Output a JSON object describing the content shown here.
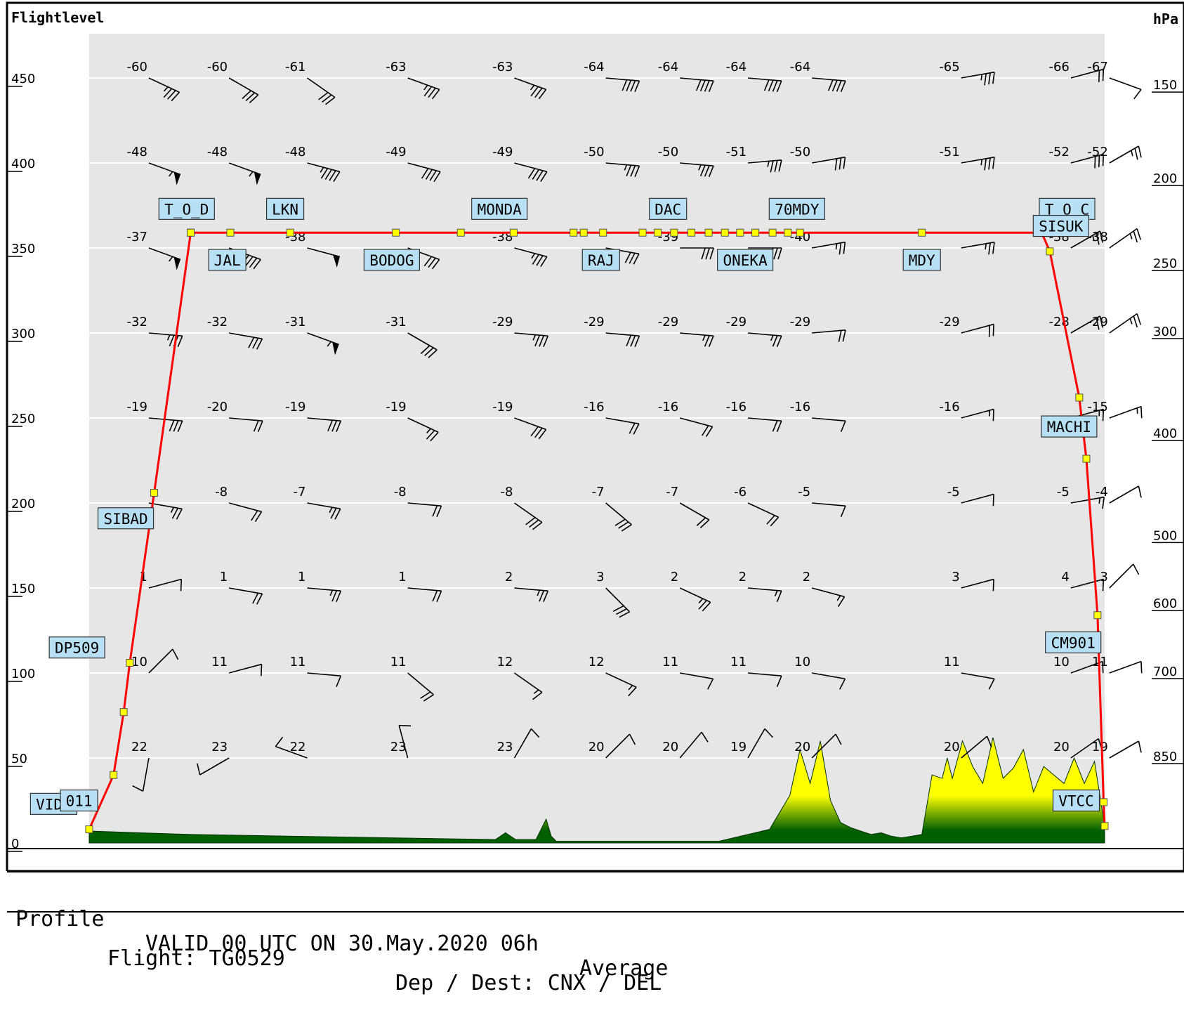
{
  "chart_data": {
    "type": "line",
    "title": "",
    "left_axis_label": "Flightlevel",
    "right_axis_label": "hPa",
    "x_range": [
      0,
      100
    ],
    "ylim": [
      0,
      475
    ],
    "flightlevel_ticks": [
      0,
      50,
      100,
      150,
      200,
      250,
      300,
      350,
      400,
      450
    ],
    "hpa_levels": [
      {
        "fl": 50,
        "label": "850"
      },
      {
        "fl": 100,
        "label": "700"
      },
      {
        "fl": 140,
        "label": "600"
      },
      {
        "fl": 180,
        "label": "500"
      },
      {
        "fl": 240,
        "label": "400"
      },
      {
        "fl": 300,
        "label": "300"
      },
      {
        "fl": 340,
        "label": "250"
      },
      {
        "fl": 390,
        "label": "200"
      },
      {
        "fl": 445,
        "label": "150"
      }
    ],
    "grid_lines_fl": [
      50,
      100,
      150,
      200,
      250,
      300,
      350,
      400,
      450
    ],
    "profile": {
      "name": "route",
      "color": "#ff0000",
      "points": [
        {
          "x": 0.0,
          "fl": 8
        },
        {
          "x": 2.4,
          "fl": 40
        },
        {
          "x": 3.4,
          "fl": 77
        },
        {
          "x": 4.0,
          "fl": 106
        },
        {
          "x": 6.4,
          "fl": 206
        },
        {
          "x": 10.0,
          "fl": 359
        },
        {
          "x": 100.0,
          "fl": 359
        }
      ],
      "descent": [
        {
          "x": 93.8,
          "fl": 359
        },
        {
          "x": 94.6,
          "fl": 348
        },
        {
          "x": 97.5,
          "fl": 262
        },
        {
          "x": 98.2,
          "fl": 226
        },
        {
          "x": 99.3,
          "fl": 134
        },
        {
          "x": 99.9,
          "fl": 24
        },
        {
          "x": 100.0,
          "fl": 10
        }
      ]
    },
    "waypoint_markers_x": [
      10.0,
      13.9,
      19.8,
      30.2,
      36.6,
      41.8,
      47.7,
      48.7,
      50.6,
      54.5,
      56.0,
      57.6,
      59.3,
      61.0,
      62.6,
      64.1,
      65.6,
      67.3,
      68.8,
      70.0,
      82.0
    ],
    "waypoint_labels": [
      {
        "name": "VIDP",
        "x": -3.5,
        "fl": 23
      },
      {
        "name": "011",
        "x": -1.0,
        "fl": 25
      },
      {
        "name": "DP509",
        "x": -1.2,
        "fl": 115
      },
      {
        "name": "SIBAD",
        "x": 3.6,
        "fl": 191
      },
      {
        "name": "T_O_D",
        "x": 9.6,
        "fl": 373
      },
      {
        "name": "JAL",
        "x": 13.6,
        "fl": 343
      },
      {
        "name": "LKN",
        "x": 19.3,
        "fl": 373
      },
      {
        "name": "BODOG",
        "x": 29.8,
        "fl": 343
      },
      {
        "name": "MONDA",
        "x": 40.4,
        "fl": 373
      },
      {
        "name": "RAJ",
        "x": 50.4,
        "fl": 343
      },
      {
        "name": "DAC",
        "x": 57.0,
        "fl": 373
      },
      {
        "name": "ONEKA",
        "x": 64.6,
        "fl": 343
      },
      {
        "name": "70MDY",
        "x": 69.7,
        "fl": 373
      },
      {
        "name": "MDY",
        "x": 82.0,
        "fl": 343
      },
      {
        "name": "T_O_C",
        "x": 96.3,
        "fl": 373
      },
      {
        "name": "SISUK",
        "x": 95.7,
        "fl": 363
      },
      {
        "name": "MACHI",
        "x": 96.5,
        "fl": 245
      },
      {
        "name": "CM901",
        "x": 96.9,
        "fl": 118
      },
      {
        "name": "VTCC",
        "x": 97.2,
        "fl": 25
      }
    ],
    "terrain": {
      "x": [
        0,
        5,
        10,
        20,
        30,
        40,
        41,
        42,
        44,
        45,
        45.5,
        46,
        47,
        50,
        55,
        62,
        67,
        68,
        69,
        70,
        71,
        72,
        73,
        74,
        75,
        76,
        77,
        78,
        79,
        80,
        81,
        82,
        83,
        84,
        84.5,
        85,
        86,
        87,
        88,
        89,
        90,
        91,
        92,
        93,
        94,
        95,
        96,
        97,
        98,
        99,
        100
      ],
      "fl": [
        7,
        6,
        5,
        4,
        3,
        2,
        6,
        2,
        2,
        14,
        4,
        1,
        1,
        1,
        1,
        1,
        8,
        18,
        28,
        55,
        35,
        60,
        25,
        12,
        9,
        7,
        5,
        6,
        4,
        3,
        4,
        5,
        40,
        38,
        50,
        38,
        60,
        45,
        35,
        62,
        38,
        44,
        55,
        30,
        45,
        40,
        35,
        50,
        35,
        48,
        10
      ],
      "colors": [
        "#006000",
        "#ffff00"
      ]
    },
    "wind_columns_x": [
      2.0,
      9.9,
      17.6,
      27.5,
      38.0,
      47.0,
      54.3,
      61.0,
      67.3,
      82.0,
      92.8,
      96.6
    ],
    "wind_levels": [
      {
        "fl": 450,
        "temps": [
          "-60",
          "-60",
          "-61",
          "-63",
          "-63",
          "-64",
          "-64",
          "-64",
          "-64",
          "-65",
          "-66",
          "-67"
        ],
        "dirs": [
          115,
          120,
          125,
          110,
          110,
          95,
          95,
          95,
          95,
          80,
          75,
          110
        ],
        "speeds": [
          35,
          30,
          30,
          35,
          35,
          40,
          40,
          40,
          40,
          35,
          20,
          10
        ]
      },
      {
        "fl": 400,
        "temps": [
          "-48",
          "-48",
          "-48",
          "-49",
          "-49",
          "-50",
          "-50",
          "-51",
          "-50",
          "-51",
          "-52",
          "-52"
        ],
        "dirs": [
          110,
          110,
          105,
          105,
          105,
          95,
          95,
          85,
          80,
          80,
          75,
          60
        ],
        "speeds": [
          55,
          55,
          45,
          40,
          40,
          35,
          35,
          35,
          30,
          35,
          30,
          25
        ]
      },
      {
        "fl": 350,
        "temps": [
          "-37",
          "-",
          "-38",
          "-",
          "-38",
          "-",
          "-39",
          "-",
          "-40",
          "-",
          "-38",
          "-38"
        ],
        "dirs": [
          110,
          110,
          105,
          110,
          105,
          100,
          90,
          90,
          80,
          80,
          60,
          55
        ],
        "speeds": [
          55,
          35,
          50,
          30,
          35,
          30,
          30,
          30,
          25,
          25,
          25,
          25
        ]
      },
      {
        "fl": 300,
        "temps": [
          "-32",
          "-32",
          "-31",
          "-31",
          "-29",
          "-29",
          "-29",
          "-29",
          "-29",
          "-29",
          "-28",
          "-29"
        ],
        "dirs": [
          95,
          100,
          110,
          120,
          95,
          95,
          95,
          95,
          85,
          75,
          60,
          55
        ],
        "speeds": [
          35,
          30,
          55,
          30,
          35,
          30,
          25,
          25,
          20,
          20,
          20,
          25
        ]
      },
      {
        "fl": 250,
        "temps": [
          "-19",
          "-20",
          "-19",
          "-19",
          "-19",
          "-16",
          "-16",
          "-16",
          "-16",
          "-16",
          "",
          "-15"
        ],
        "dirs": [
          95,
          95,
          95,
          115,
          110,
          100,
          105,
          95,
          95,
          75,
          75,
          70
        ],
        "speeds": [
          30,
          20,
          30,
          25,
          30,
          20,
          20,
          20,
          10,
          15,
          15,
          15
        ]
      },
      {
        "fl": 200,
        "temps": [
          "",
          "-8",
          "-7",
          "-8",
          "-8",
          "-7",
          "-7",
          "-6",
          "-5",
          "-5",
          "-5",
          "-4"
        ],
        "dirs": [
          100,
          105,
          100,
          95,
          125,
          130,
          120,
          115,
          95,
          75,
          80,
          60
        ],
        "speeds": [
          25,
          20,
          25,
          20,
          30,
          30,
          20,
          20,
          10,
          10,
          15,
          10
        ]
      },
      {
        "fl": 150,
        "temps": [
          "1",
          "1",
          "1",
          "1",
          "2",
          "3",
          "2",
          "2",
          "2",
          "3",
          "4",
          "3"
        ],
        "dirs": [
          75,
          100,
          95,
          95,
          95,
          135,
          115,
          95,
          105,
          75,
          75,
          45
        ],
        "speeds": [
          10,
          20,
          25,
          20,
          25,
          30,
          25,
          15,
          15,
          10,
          10,
          10
        ]
      },
      {
        "fl": 100,
        "temps": [
          "10",
          "11",
          "11",
          "11",
          "12",
          "12",
          "11",
          "11",
          "10",
          "11",
          "10",
          "11"
        ],
        "dirs": [
          45,
          75,
          95,
          130,
          125,
          115,
          100,
          95,
          100,
          100,
          70,
          70
        ],
        "speeds": [
          10,
          10,
          10,
          20,
          15,
          15,
          10,
          10,
          10,
          10,
          10,
          10
        ]
      },
      {
        "fl": 50,
        "temps": [
          "22",
          "23",
          "22",
          "23",
          "23",
          "20",
          "20",
          "19",
          "20",
          "20",
          "20",
          "19"
        ],
        "dirs": [
          190,
          240,
          290,
          345,
          30,
          45,
          40,
          30,
          45,
          50,
          55,
          60
        ],
        "speeds": [
          10,
          10,
          10,
          10,
          10,
          10,
          10,
          10,
          10,
          10,
          10,
          10
        ]
      }
    ]
  },
  "footer": {
    "label_profile": "Profile",
    "valid_text": "VALID 00 UTC ON 30.May.2020 06h",
    "average_text": "Average",
    "flight_text": "Flight: TG0529",
    "depdest_text": "Dep / Dest: CNX / DEL"
  }
}
